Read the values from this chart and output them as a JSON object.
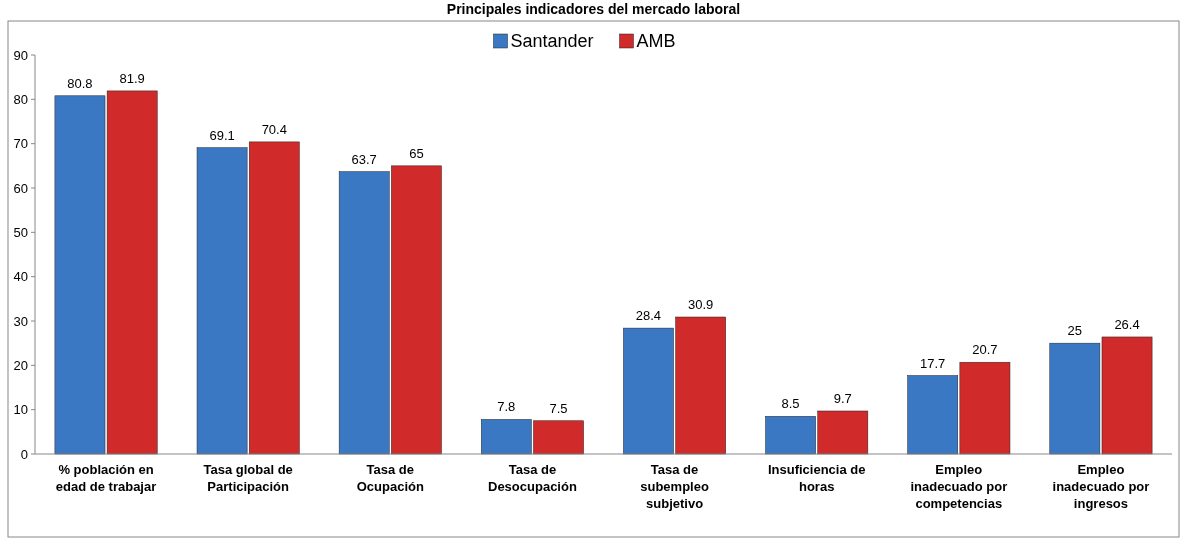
{
  "chart_data": {
    "type": "bar",
    "title": "Principales indicadores del mercado laboral",
    "categories": [
      "% población en edad de trabajar",
      "Tasa global de Participación",
      "Tasa de Ocupación",
      "Tasa de Desocupación",
      "Tasa de subempleo subjetivo",
      "Insuficiencia de horas",
      "Empleo inadecuado por competencias",
      "Empleo inadecuado por ingresos"
    ],
    "series": [
      {
        "name": "Santander",
        "color": "#3b78c4",
        "values": [
          80.8,
          69.1,
          63.7,
          7.8,
          28.4,
          8.5,
          17.7,
          25
        ]
      },
      {
        "name": "AMB",
        "color": "#d02a2a",
        "values": [
          81.9,
          70.4,
          65,
          7.5,
          30.9,
          9.7,
          20.7,
          26.4
        ]
      }
    ],
    "ylim": [
      0,
      90
    ],
    "yticks": [
      0,
      10,
      20,
      30,
      40,
      50,
      60,
      70,
      80,
      90
    ],
    "data_labels": true,
    "legend": "top"
  }
}
